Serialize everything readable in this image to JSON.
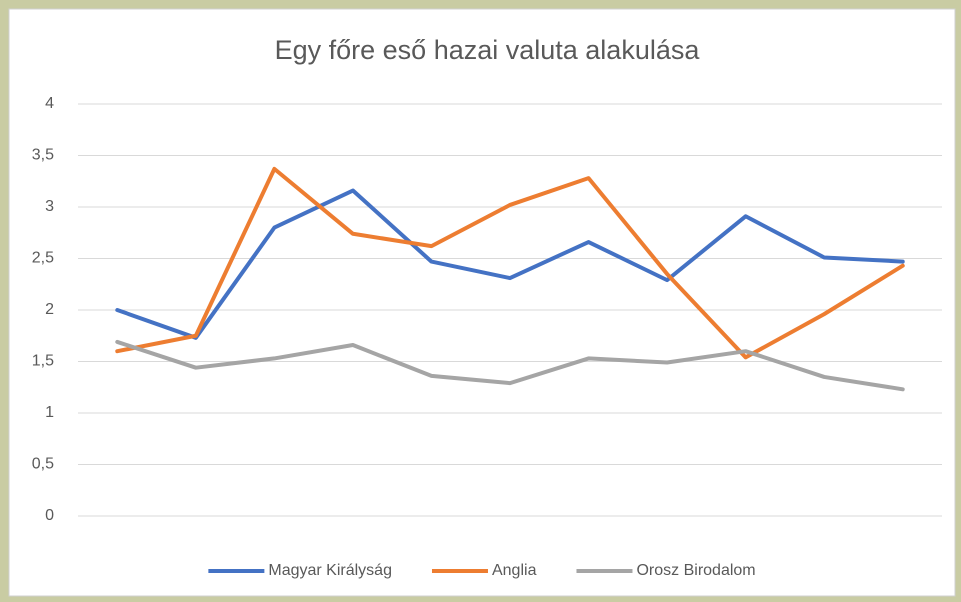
{
  "chart_data": {
    "type": "line",
    "title": "Egy főre eső hazai valuta alakulása",
    "categories": [
      null,
      null,
      null,
      null,
      null,
      null,
      null,
      null,
      null,
      null,
      null
    ],
    "series": [
      {
        "name": "Magyar Királyság",
        "color": "#4472c4",
        "values": [
          2.0,
          1.73,
          2.8,
          3.16,
          2.47,
          2.31,
          2.66,
          2.29,
          2.91,
          2.51,
          2.47
        ]
      },
      {
        "name": "Anglia",
        "color": "#ed7d31",
        "values": [
          1.6,
          1.75,
          3.37,
          2.74,
          2.62,
          3.02,
          3.28,
          2.35,
          1.54,
          1.96,
          2.43
        ]
      },
      {
        "name": "Orosz Birodalom",
        "color": "#a5a5a5",
        "values": [
          1.69,
          1.44,
          1.53,
          1.66,
          1.36,
          1.29,
          1.53,
          1.49,
          1.6,
          1.35,
          1.23
        ]
      }
    ],
    "ylim": [
      0,
      4
    ],
    "yticks": [
      0,
      {
        "value": 0.5,
        "label": "0,5"
      },
      1,
      {
        "value": 1.5,
        "label": "1,5"
      },
      2,
      {
        "value": 2.5,
        "label": "2,5"
      },
      3,
      {
        "value": 3.5,
        "label": "3,5"
      },
      4
    ],
    "grid": true,
    "legend": "bottom"
  }
}
